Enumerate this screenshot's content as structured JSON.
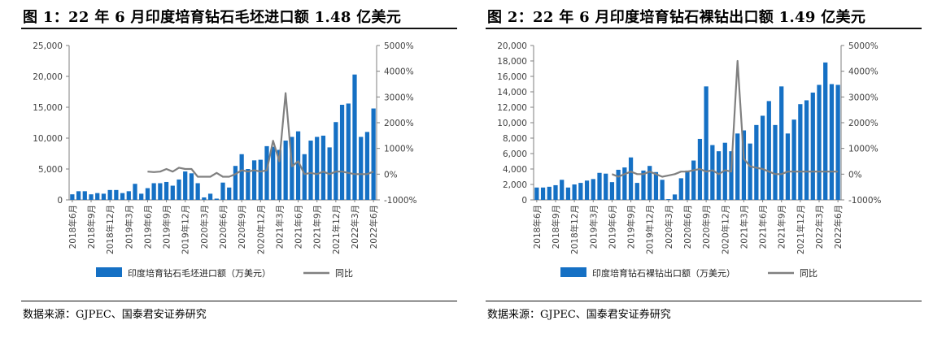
{
  "panels": [
    {
      "title": "图 1：22 年 6 月印度培育钻石毛坯进口额 1.48 亿美元",
      "source": "数据来源：GJPEC、国泰君安证券研究"
    },
    {
      "title": "图 2：22 年 6 月印度培育钻石裸钻出口额 1.49 亿美元",
      "source": "数据来源：GJPEC、国泰君安证券研究"
    }
  ],
  "colors": {
    "bar": "#1570C4",
    "line": "#808080"
  },
  "chart_data": [
    {
      "type": "bar",
      "title": "",
      "x_tick_labels": [
        "2018年6月",
        "2018年9月",
        "2018年12月",
        "2019年3月",
        "2019年6月",
        "2019年9月",
        "2019年12月",
        "2020年3月",
        "2020年6月",
        "2020年9月",
        "2020年12月",
        "2021年3月",
        "2021年6月",
        "2021年9月",
        "2021年12月",
        "2022年3月",
        "2022年6月"
      ],
      "x_start": "2018-06",
      "x_end": "2022-06",
      "left_axis": {
        "ylim": [
          0,
          25000
        ],
        "ticks": [
          "0",
          "5,000",
          "10,000",
          "15,000",
          "20,000",
          "25,000"
        ],
        "tick_values": [
          0,
          5000,
          10000,
          15000,
          20000,
          25000
        ]
      },
      "right_axis": {
        "ylim": [
          -1000,
          5000
        ],
        "ticks": [
          "-1000%",
          "0%",
          "1000%",
          "2000%",
          "3000%",
          "4000%",
          "5000%"
        ],
        "tick_values": [
          -1000,
          0,
          1000,
          2000,
          3000,
          4000,
          5000
        ]
      },
      "grid": false,
      "legend_position": "bottom",
      "series": [
        {
          "name": "印度培育钻石毛坯进口额（万美元）",
          "type": "bar",
          "axis": "left",
          "values": [
            900,
            1400,
            1400,
            900,
            1100,
            1000,
            1600,
            1600,
            1100,
            1400,
            2600,
            1000,
            1900,
            2700,
            2700,
            2900,
            2300,
            3300,
            4600,
            4300,
            2700,
            400,
            1000,
            200,
            2800,
            2000,
            5500,
            7400,
            5000,
            6400,
            6500,
            8700,
            8600,
            8100,
            9600,
            10200,
            11100,
            7400,
            9600,
            10200,
            10400,
            8500,
            12600,
            15400,
            15600,
            20300,
            10200,
            11000,
            14800
          ]
        },
        {
          "name": "同比",
          "type": "line",
          "axis": "right",
          "start_index": 12,
          "values": [
            100,
            80,
            100,
            200,
            100,
            250,
            200,
            200,
            -100,
            -100,
            -100,
            50,
            -100,
            -100,
            0,
            150,
            100,
            150,
            100,
            150,
            1300,
            500,
            3150,
            300,
            500,
            0,
            50,
            0,
            100,
            0,
            100,
            100,
            50,
            0,
            0,
            0,
            100
          ]
        }
      ]
    },
    {
      "type": "bar",
      "title": "",
      "x_tick_labels": [
        "2018年6月",
        "2018年9月",
        "2018年12月",
        "2019年3月",
        "2019年6月",
        "2019年9月",
        "2019年12月",
        "2020年3月",
        "2020年6月",
        "2020年9月",
        "2020年12月",
        "2021年3月",
        "2021年6月",
        "2021年9月",
        "2021年12月",
        "2022年3月",
        "2022年6月"
      ],
      "x_start": "2018-06",
      "x_end": "2022-06",
      "left_axis": {
        "ylim": [
          0,
          20000
        ],
        "ticks": [
          "0",
          "2,000",
          "4,000",
          "6,000",
          "8,000",
          "10,000",
          "12,000",
          "14,000",
          "16,000",
          "18,000",
          "20,000"
        ],
        "tick_values": [
          0,
          2000,
          4000,
          6000,
          8000,
          10000,
          12000,
          14000,
          16000,
          18000,
          20000
        ]
      },
      "right_axis": {
        "ylim": [
          -1000,
          5000
        ],
        "ticks": [
          "-1000%",
          "0%",
          "1000%",
          "2000%",
          "3000%",
          "4000%",
          "5000%"
        ],
        "tick_values": [
          -1000,
          0,
          1000,
          2000,
          3000,
          4000,
          5000
        ]
      },
      "grid": false,
      "legend_position": "bottom",
      "series": [
        {
          "name": "印度培育钻石裸钻出口额（万美元）",
          "type": "bar",
          "axis": "left",
          "values": [
            1600,
            1600,
            1700,
            1900,
            2600,
            1600,
            2000,
            2200,
            2500,
            2700,
            3500,
            3400,
            2300,
            3900,
            4200,
            5500,
            2200,
            3800,
            4400,
            3600,
            2600,
            100,
            700,
            2800,
            3800,
            5100,
            7900,
            14700,
            7100,
            6300,
            7400,
            6300,
            8600,
            9000,
            7300,
            9700,
            10900,
            12800,
            9700,
            14700,
            8600,
            10400,
            12400,
            12900,
            13900,
            14900,
            17800,
            15000,
            14900
          ]
        },
        {
          "name": "同比",
          "type": "line",
          "axis": "right",
          "start_index": 12,
          "values": [
            0,
            -100,
            0,
            100,
            0,
            0,
            100,
            0,
            -100,
            -50,
            0,
            100,
            100,
            150,
            200,
            100,
            150,
            0,
            150,
            100,
            4400,
            600,
            300,
            250,
            200,
            100,
            0,
            0,
            100,
            100,
            100,
            100,
            100,
            100,
            100,
            100,
            100
          ]
        }
      ]
    }
  ]
}
